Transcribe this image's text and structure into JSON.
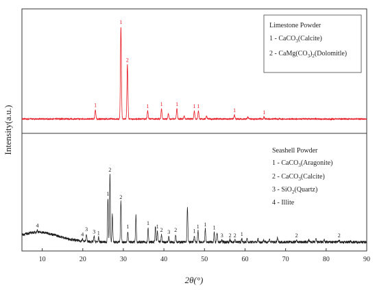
{
  "chart_data": {
    "type": "line",
    "xlabel": "2θ(°)",
    "ylabel": "Intensity(a.u.)",
    "xlim": [
      5,
      90
    ],
    "xticks": [
      10,
      20,
      30,
      40,
      50,
      60,
      70,
      80,
      90
    ],
    "panels": [
      {
        "id": "limestone",
        "color": "#e8141e",
        "legend": {
          "title": "Limestone Powder",
          "entries": [
            {
              "id": "1",
              "label": "1 - CaCO",
              "sub": "3",
              "tail": "(Calcite)"
            },
            {
              "id": "2",
              "label": "2 - CaMg(CO",
              "sub": "3",
              "mid": ")",
              "sub2": "2",
              "tail": "(Dolomitle)"
            }
          ]
        },
        "peaks": [
          {
            "x": 23.1,
            "h": 0.09,
            "label": "1"
          },
          {
            "x": 29.4,
            "h": 0.9,
            "label": "1"
          },
          {
            "x": 31.0,
            "h": 0.53,
            "label": "2"
          },
          {
            "x": 36.0,
            "h": 0.08,
            "label": "1"
          },
          {
            "x": 39.4,
            "h": 0.1,
            "label": "1"
          },
          {
            "x": 41.1,
            "h": 0.05,
            "label": ""
          },
          {
            "x": 43.2,
            "h": 0.1,
            "label": "1"
          },
          {
            "x": 45.0,
            "h": 0.03,
            "label": ""
          },
          {
            "x": 47.5,
            "h": 0.08,
            "label": "1"
          },
          {
            "x": 48.5,
            "h": 0.08,
            "label": "1"
          },
          {
            "x": 50.5,
            "h": 0.03,
            "label": ""
          },
          {
            "x": 57.4,
            "h": 0.04,
            "label": "1"
          },
          {
            "x": 60.7,
            "h": 0.02,
            "label": ""
          },
          {
            "x": 64.7,
            "h": 0.02,
            "label": "1"
          }
        ]
      },
      {
        "id": "seashell",
        "color": "#1a1a1a",
        "legend": {
          "title": "Seashell Powder",
          "entries": [
            {
              "id": "1",
              "label": "1 - CaCO",
              "sub": "3",
              "tail": "(Aragonite)"
            },
            {
              "id": "2",
              "label": "2 - CaCO",
              "sub": "3",
              "tail": "(Calcite)"
            },
            {
              "id": "3",
              "label": "3 - SiO",
              "sub": "2",
              "tail": "(Quartz)"
            },
            {
              "id": "4",
              "label": "4 - Illite",
              "sub": "",
              "tail": ""
            }
          ]
        },
        "hump": {
          "center": 9,
          "amp": 0.09,
          "width": 5
        },
        "peaks": [
          {
            "x": 8.8,
            "h": 0.02,
            "label": "4"
          },
          {
            "x": 19.9,
            "h": 0.02,
            "label": "4"
          },
          {
            "x": 20.9,
            "h": 0.07,
            "label": "3"
          },
          {
            "x": 22.8,
            "h": 0.05,
            "label": "3"
          },
          {
            "x": 23.9,
            "h": 0.04,
            "label": "1"
          },
          {
            "x": 26.2,
            "h": 0.4,
            "label": "1"
          },
          {
            "x": 26.7,
            "h": 0.62,
            "label": "2"
          },
          {
            "x": 27.3,
            "h": 0.25,
            "label": ""
          },
          {
            "x": 29.4,
            "h": 0.37,
            "label": "2"
          },
          {
            "x": 31.1,
            "h": 0.1,
            "label": "1"
          },
          {
            "x": 33.1,
            "h": 0.24,
            "label": ""
          },
          {
            "x": 36.1,
            "h": 0.13,
            "label": "1"
          },
          {
            "x": 37.9,
            "h": 0.14,
            "label": ""
          },
          {
            "x": 38.4,
            "h": 0.1,
            "label": "1"
          },
          {
            "x": 39.4,
            "h": 0.07,
            "label": "2"
          },
          {
            "x": 41.2,
            "h": 0.05,
            "label": "3"
          },
          {
            "x": 42.9,
            "h": 0.07,
            "label": "2"
          },
          {
            "x": 45.8,
            "h": 0.32,
            "label": ""
          },
          {
            "x": 47.5,
            "h": 0.06,
            "label": "1"
          },
          {
            "x": 48.4,
            "h": 0.1,
            "label": "1"
          },
          {
            "x": 50.2,
            "h": 0.12,
            "label": "1"
          },
          {
            "x": 52.4,
            "h": 0.09,
            "label": "1"
          },
          {
            "x": 53.1,
            "h": 0.08,
            "label": ""
          },
          {
            "x": 54.3,
            "h": 0.02,
            "label": "3"
          },
          {
            "x": 56.3,
            "h": 0.02,
            "label": "2"
          },
          {
            "x": 57.5,
            "h": 0.02,
            "label": "2"
          },
          {
            "x": 59.2,
            "h": 0.03,
            "label": "1"
          },
          {
            "x": 60.5,
            "h": 0.03,
            "label": ""
          },
          {
            "x": 63.2,
            "h": 0.03,
            "label": ""
          },
          {
            "x": 64.6,
            "h": 0.02,
            "label": ""
          },
          {
            "x": 66.0,
            "h": 0.03,
            "label": ""
          },
          {
            "x": 68.0,
            "h": 0.04,
            "label": ""
          },
          {
            "x": 72.7,
            "h": 0.02,
            "label": "2"
          },
          {
            "x": 75.7,
            "h": 0.02,
            "label": ""
          },
          {
            "x": 77.5,
            "h": 0.03,
            "label": ""
          },
          {
            "x": 79.5,
            "h": 0.02,
            "label": ""
          },
          {
            "x": 83.2,
            "h": 0.02,
            "label": "2"
          },
          {
            "x": 86.0,
            "h": 0.01,
            "label": ""
          }
        ]
      }
    ]
  }
}
